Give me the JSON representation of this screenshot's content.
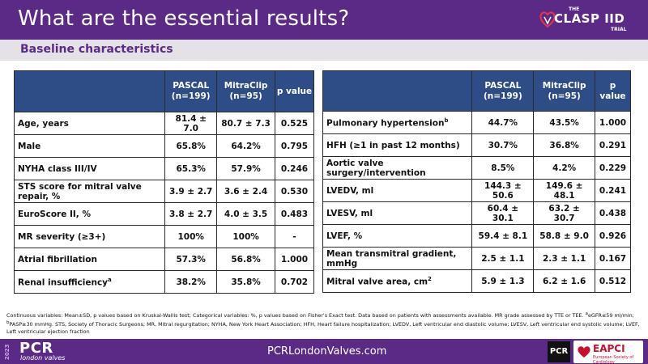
{
  "header": {
    "title": "What are the essential results?",
    "logo": {
      "the": "THE",
      "name": "CLASP IID",
      "trial": "TRIAL"
    }
  },
  "subheader": "Baseline characteristics",
  "left_table": {
    "columns": [
      "",
      "PASCAL\n(n=199)",
      "MitraClip\n(n=95)",
      "p value"
    ],
    "rows": [
      {
        "label": "Age, years",
        "sup": "",
        "pascal": "81.4 ± 7.0",
        "mitraclip": "80.7 ± 7.3",
        "p": "0.525"
      },
      {
        "label": "Male",
        "sup": "",
        "pascal": "65.8%",
        "mitraclip": "64.2%",
        "p": "0.795"
      },
      {
        "label": "NYHA class III/IV",
        "sup": "",
        "pascal": "65.3%",
        "mitraclip": "57.9%",
        "p": "0.246"
      },
      {
        "label": "STS score for mitral valve repair, %",
        "sup": "",
        "pascal": "3.9 ± 2.7",
        "mitraclip": "3.6 ± 2.4",
        "p": "0.530"
      },
      {
        "label": "EuroScore II, %",
        "sup": "",
        "pascal": "3.8 ± 2.7",
        "mitraclip": "4.0 ± 3.5",
        "p": "0.483"
      },
      {
        "label": "MR severity (≥3+)",
        "sup": "",
        "pascal": "100%",
        "mitraclip": "100%",
        "p": "-"
      },
      {
        "label": "Atrial fibrillation",
        "sup": "",
        "pascal": "57.3%",
        "mitraclip": "56.8%",
        "p": "1.000"
      },
      {
        "label": "Renal insufficiency",
        "sup": "a",
        "pascal": "38.2%",
        "mitraclip": "35.8%",
        "p": "0.702"
      }
    ]
  },
  "right_table": {
    "columns": [
      "",
      "PASCAL\n(n=199)",
      "MitraClip\n(n=95)",
      "p value"
    ],
    "rows": [
      {
        "label": "Pulmonary hypertension",
        "sup": "b",
        "pascal": "44.7%",
        "mitraclip": "43.5%",
        "p": "1.000"
      },
      {
        "label": "HFH (≥1 in past 12 months)",
        "sup": "",
        "pascal": "30.7%",
        "mitraclip": "36.8%",
        "p": "0.291"
      },
      {
        "label": "Aortic valve surgery/intervention",
        "sup": "",
        "pascal": "8.5%",
        "mitraclip": "4.2%",
        "p": "0.229"
      },
      {
        "label": "LVEDV, ml",
        "sup": "",
        "pascal": "144.3 ± 50.6",
        "mitraclip": "149.6 ± 48.1",
        "p": "0.241"
      },
      {
        "label": "LVESV, ml",
        "sup": "",
        "pascal": "60.4 ± 30.1",
        "mitraclip": "63.2 ± 30.7",
        "p": "0.438"
      },
      {
        "label": "LVEF, %",
        "sup": "",
        "pascal": "59.4 ± 8.1",
        "mitraclip": "58.8 ± 9.0",
        "p": "0.926"
      },
      {
        "label": "Mean transmitral gradient, mmHg",
        "sup": "",
        "pascal": "2.5 ± 1.1",
        "mitraclip": "2.3 ± 1.1",
        "p": "0.167"
      },
      {
        "label": "Mitral valve area, cm",
        "sup": "2",
        "pascal": "5.9 ± 1.3",
        "mitraclip": "6.2 ± 1.6",
        "p": "0.512"
      }
    ]
  },
  "footnote": {
    "line1": "Continuous variables: Mean±SD, p values based on Kruskal-Wallis test; Categorical variables: %, p values based on Fisher's Exact test. Data based on patients with assessments available. MR grade assessed by TTE or TEE.",
    "line1_sup": "a",
    "line1_tail": "eGFR≤59 ml/min;",
    "line2_sup": "b",
    "line2": "PASP≥30 mmHg. STS, Society of Thoracic Surgeons; MR, Mitral regurgitation; NYHA, New York Heart Association; HFH, Heart failure hospitalization; LVEDV, Left ventricular end diastolic volume; LVESV, Left ventricular end systolic volume; LVEF, Left ventricular ejection fraction"
  },
  "footer": {
    "year": "2023",
    "pcr": "PCR",
    "pcr_sub": "london valves",
    "url": "PCRLondonValves.com",
    "badge_pcr": "PCR",
    "eapci": "EAPCI",
    "eapci_sub": "European Society of Cardiology"
  },
  "colors": {
    "brand_purple": "#5b2a86",
    "table_header_blue": "#2e4d86",
    "subheader_bg": "#e4e1e7"
  }
}
